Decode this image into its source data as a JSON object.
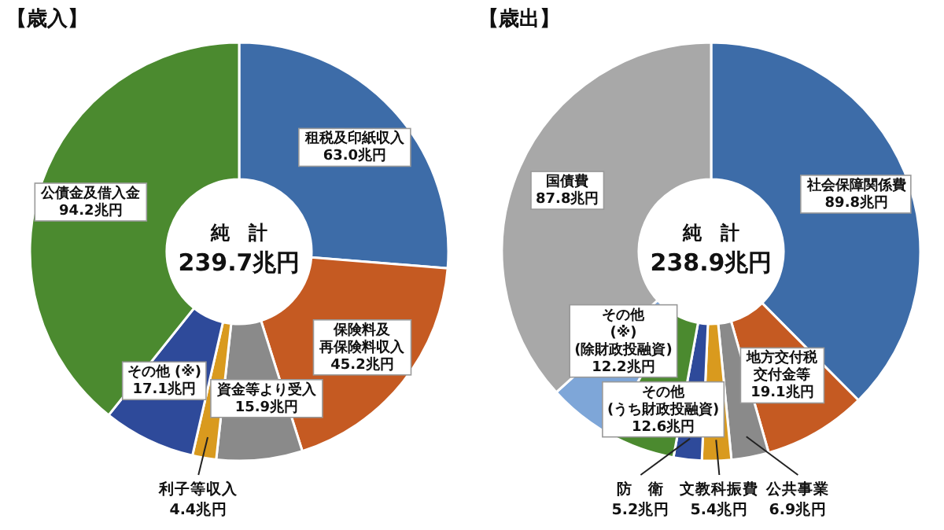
{
  "chart_data": [
    {
      "type": "donut",
      "title": "【歳入】",
      "categories": [
        "租税及印紙収入",
        "保険料及再保険料収入",
        "資金等より受入",
        "利子等収入",
        "その他 (※)",
        "公債金及借入金"
      ],
      "values": [
        63.0,
        45.2,
        15.9,
        4.4,
        17.1,
        94.2
      ],
      "colors": [
        "#3d6ca8",
        "#c55a22",
        "#8a8a8a",
        "#d99a1e",
        "#2e4a9a",
        "#4b8a2f"
      ],
      "value_labels": [
        "63.0兆円",
        "45.2兆円",
        "15.9兆円",
        "4.4兆円",
        "17.1兆円",
        "94.2兆円"
      ],
      "annotations": [
        "純　計",
        "239.7兆円"
      ]
    },
    {
      "type": "donut",
      "title": "【歳出】",
      "categories": [
        "社会保障関係費",
        "地方交付税交付金等",
        "公共事業",
        "文教科振費",
        "防　衛",
        "その他(うち財政投融資)",
        "その他(※)(除財政投融資)",
        "国債費"
      ],
      "values": [
        89.8,
        19.1,
        6.9,
        5.4,
        5.2,
        12.6,
        12.2,
        87.8
      ],
      "colors": [
        "#3d6ca8",
        "#c55a22",
        "#8a8a8a",
        "#d99a1e",
        "#2e4a9a",
        "#4b8a2f",
        "#7ea6d8",
        "#a8a8a8"
      ],
      "value_labels": [
        "89.8兆円",
        "19.1兆円",
        "6.9兆円",
        "5.4兆円",
        "5.2兆円",
        "12.6兆円",
        "12.2兆円",
        "87.8兆円"
      ],
      "annotations": [
        "純　計",
        "238.9兆円"
      ]
    }
  ]
}
